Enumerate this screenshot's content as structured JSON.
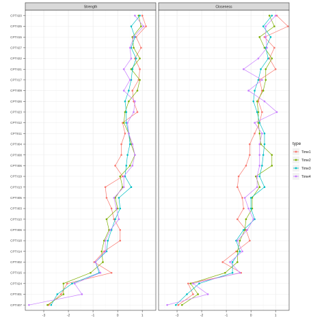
{
  "chart_data": {
    "type": "line",
    "facet_titles": [
      "Strength",
      "Closeness"
    ],
    "categories": [
      "CPTII20",
      "CPTII25",
      "CPTII15",
      "CPTII27",
      "CPTII22",
      "CPTII21",
      "CPTII17",
      "CPTII09",
      "CPTII26",
      "CPTII23",
      "CPTII12",
      "CPTII11",
      "CPTII04",
      "CPTII08",
      "CPTII06",
      "CPTII19",
      "CPTII13",
      "CPTII05",
      "CPTII03",
      "CPTII10",
      "CPTII06",
      "CPTII18",
      "CPTII14",
      "CPTII02",
      "CPTII16",
      "CPTII24",
      "CPTII01",
      "CPTII07"
    ],
    "xlim": [
      -3.75,
      1.55
    ],
    "xticks": [
      "-3",
      "-2",
      "-1",
      "0",
      "1"
    ],
    "xtick_values": [
      -3,
      -2,
      -1,
      0,
      1
    ],
    "legend": {
      "title": "type",
      "placement": "right",
      "items": [
        {
          "label": "Time1",
          "color": "#F8766D"
        },
        {
          "label": "Time2",
          "color": "#7CAE00"
        },
        {
          "label": "Time3",
          "color": "#00BFC4"
        },
        {
          "label": "Time4",
          "color": "#C77CFF"
        }
      ]
    },
    "panels": [
      {
        "title": "Strength",
        "series": [
          {
            "name": "Time1",
            "color": "#F8766D",
            "values": [
              1.0,
              1.15,
              0.75,
              0.95,
              0.7,
              0.9,
              0.85,
              0.6,
              0.65,
              0.8,
              0.2,
              0.3,
              0.15,
              0.15,
              -0.1,
              0.2,
              -0.5,
              -0.45,
              -0.25,
              -0.15,
              0.1,
              0.1,
              -0.55,
              -0.95,
              -0.25,
              -2.05,
              -2.3,
              -2.8
            ]
          },
          {
            "name": "Time2",
            "color": "#7CAE00",
            "values": [
              0.85,
              0.95,
              0.6,
              0.65,
              0.9,
              0.55,
              0.9,
              0.8,
              0.45,
              0.3,
              0.25,
              0.45,
              0.55,
              0.7,
              0.5,
              0.1,
              0.2,
              -0.1,
              0.0,
              -0.45,
              -0.35,
              -0.55,
              -0.65,
              -0.6,
              -1.1,
              -2.2,
              -2.2,
              -2.85
            ]
          },
          {
            "name": "Time3",
            "color": "#00BFC4",
            "values": [
              0.9,
              0.55,
              0.7,
              0.55,
              0.75,
              0.6,
              0.55,
              0.45,
              0.3,
              0.35,
              0.35,
              0.45,
              0.5,
              0.4,
              0.35,
              0.3,
              0.55,
              0.05,
              0.1,
              -0.1,
              -0.25,
              -0.4,
              -0.45,
              -0.9,
              -0.75,
              -1.85,
              -2.45,
              -2.7
            ]
          },
          {
            "name": "Time4",
            "color": "#C77CFF",
            "values": [
              0.7,
              1.05,
              0.65,
              0.5,
              0.55,
              0.25,
              0.5,
              0.25,
              0.7,
              0.65,
              0.4,
              0.45,
              0.6,
              0.7,
              0.6,
              0.25,
              0.25,
              -0.15,
              -0.05,
              0.05,
              -0.3,
              -0.5,
              -0.5,
              -0.9,
              -0.7,
              -1.75,
              -1.45,
              -3.6
            ]
          }
        ]
      },
      {
        "title": "Closeness",
        "series": [
          {
            "name": "Time1",
            "color": "#F8766D",
            "values": [
              1.05,
              1.5,
              0.55,
              0.95,
              0.75,
              1.0,
              0.35,
              0.45,
              0.3,
              0.45,
              0.35,
              0.15,
              -0.05,
              -0.05,
              -0.2,
              -0.5,
              -0.55,
              -0.35,
              -0.3,
              -0.55,
              -0.2,
              -0.05,
              -0.6,
              -1.15,
              -0.4,
              -2.55,
              -2.35,
              -2.95
            ]
          },
          {
            "name": "Time2",
            "color": "#7CAE00",
            "values": [
              0.75,
              0.95,
              0.35,
              0.55,
              0.85,
              0.6,
              0.6,
              0.5,
              0.25,
              0.3,
              0.3,
              0.35,
              0.4,
              0.85,
              0.85,
              0.2,
              0.35,
              0.05,
              0.05,
              -0.2,
              -0.25,
              -0.45,
              -0.55,
              -0.55,
              -1.05,
              -2.45,
              -2.15,
              -2.8
            ]
          },
          {
            "name": "Time3",
            "color": "#00BFC4",
            "values": [
              0.85,
              0.5,
              0.8,
              0.6,
              0.7,
              0.4,
              0.3,
              0.15,
              0.1,
              0.25,
              0.35,
              0.55,
              0.55,
              0.5,
              0.45,
              0.35,
              0.55,
              0.0,
              0.0,
              0.15,
              -0.3,
              -0.6,
              -0.45,
              -0.75,
              -0.75,
              -2.1,
              -2.6,
              -3.05
            ]
          },
          {
            "name": "Time4",
            "color": "#C77CFF",
            "values": [
              1.0,
              0.6,
              0.6,
              0.65,
              0.3,
              -0.3,
              0.45,
              -0.1,
              0.55,
              1.05,
              0.15,
              0.45,
              0.35,
              0.35,
              0.35,
              0.25,
              0.25,
              -0.25,
              -0.1,
              0.1,
              -0.15,
              -0.55,
              -0.35,
              -0.85,
              -0.45,
              -2.35,
              -1.75,
              -3.4
            ]
          }
        ]
      }
    ]
  }
}
